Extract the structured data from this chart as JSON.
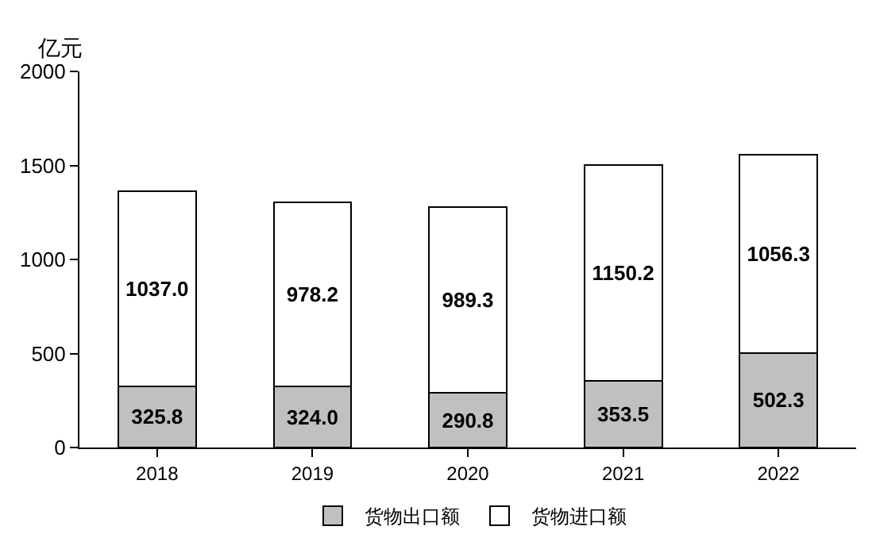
{
  "chart_data": {
    "type": "bar",
    "stacked": true,
    "ylabel": "亿元",
    "categories": [
      "2018",
      "2019",
      "2020",
      "2021",
      "2022"
    ],
    "series": [
      {
        "name": "货物出口额",
        "color": "#c0c0c0",
        "values": [
          325.8,
          324.0,
          290.8,
          353.5,
          502.3
        ],
        "value_labels": [
          "325.8",
          "324.0",
          "290.8",
          "353.5",
          "502.3"
        ]
      },
      {
        "name": "货物进口额",
        "color": "#ffffff",
        "values": [
          1037.0,
          978.2,
          989.3,
          1150.2,
          1056.3
        ],
        "value_labels": [
          "1037.0",
          "978.2",
          "989.3",
          "1150.2",
          "1056.3"
        ]
      }
    ],
    "ylim": [
      0,
      2000
    ],
    "yticks": [
      0,
      500,
      1000,
      1500,
      2000
    ],
    "legend": "bottom"
  }
}
